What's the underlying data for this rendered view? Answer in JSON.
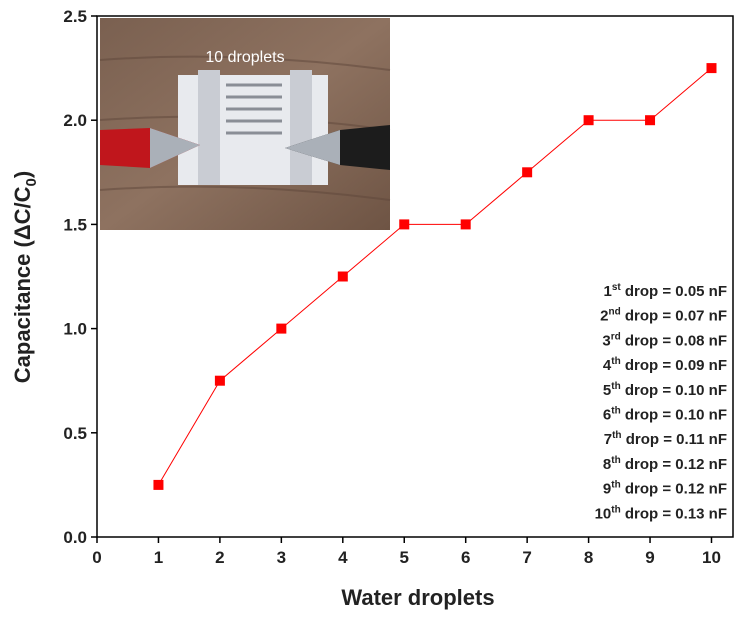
{
  "chart_data": {
    "type": "line",
    "xlabel": "Water droplets",
    "ylabel": {
      "main": "Capacitance (ΔC/C",
      "sub": "0",
      "close": ")"
    },
    "x": [
      1,
      2,
      3,
      4,
      5,
      6,
      7,
      8,
      9,
      10
    ],
    "series": [
      {
        "color": "#ff0000",
        "values": [
          0.25,
          0.75,
          1.0,
          1.25,
          1.5,
          1.5,
          1.75,
          2.0,
          2.0,
          2.25
        ]
      }
    ],
    "xlim": [
      0,
      10.35
    ],
    "ylim": [
      0,
      2.5
    ],
    "xticks": [
      0,
      1,
      2,
      3,
      4,
      5,
      6,
      7,
      8,
      9,
      10
    ],
    "yticks": [
      {
        "value": 0,
        "label": "0.0"
      },
      0.5,
      {
        "value": 1,
        "label": "1.0"
      },
      1.5,
      {
        "value": 2,
        "label": "2.0"
      },
      2.5
    ],
    "inset_label": "10 droplets",
    "annotations": [
      {
        "n": "1",
        "sup": "st",
        "text": " drop = 0.05 nF"
      },
      {
        "n": "2",
        "sup": "nd",
        "text": " drop = 0.07 nF"
      },
      {
        "n": "3",
        "sup": "rd",
        "text": " drop = 0.08 nF"
      },
      {
        "n": "4",
        "sup": "th",
        "text": " drop = 0.09 nF"
      },
      {
        "n": "5",
        "sup": "th",
        "text": " drop = 0.10 nF"
      },
      {
        "n": "6",
        "sup": "th",
        "text": " drop = 0.10 nF"
      },
      {
        "n": "7",
        "sup": "th",
        "text": " drop = 0.11 nF"
      },
      {
        "n": "8",
        "sup": "th",
        "text": " drop = 0.12 nF"
      },
      {
        "n": "9",
        "sup": "th",
        "text": " drop = 0.12 nF"
      },
      {
        "n": "10",
        "sup": "th",
        "text": " drop = 0.13 nF"
      }
    ]
  }
}
